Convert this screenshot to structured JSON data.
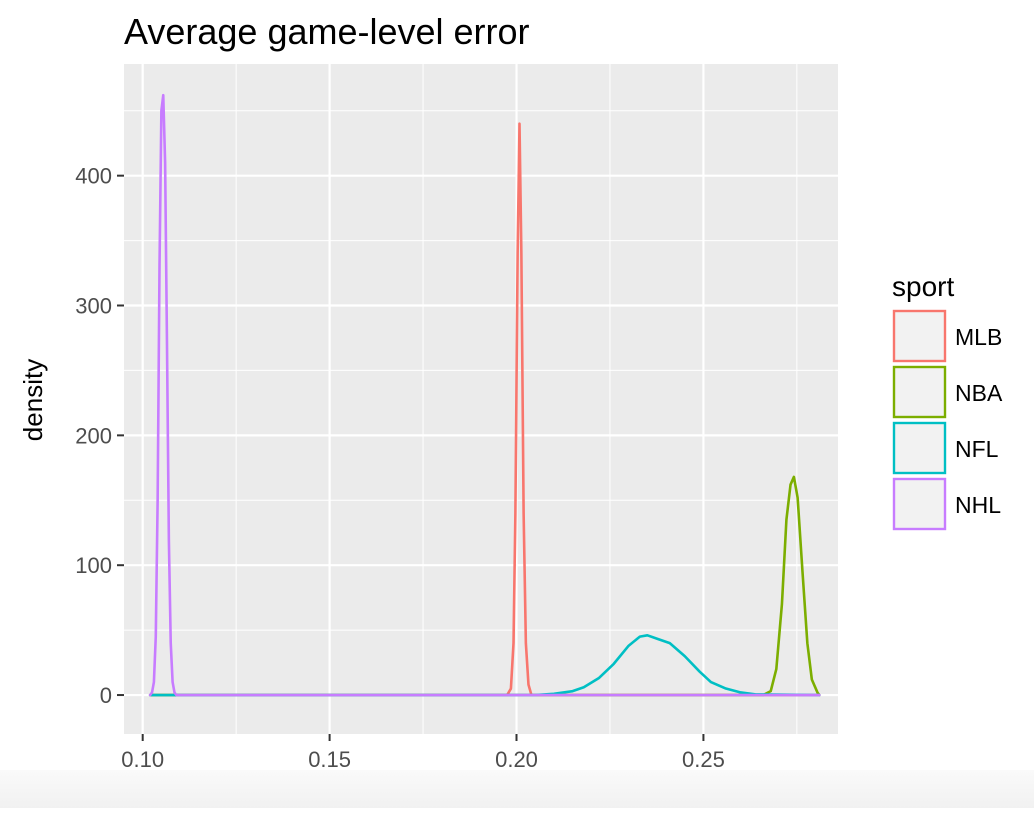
{
  "chart_data": {
    "type": "line",
    "title": "Average game-level error",
    "xlabel": "",
    "ylabel": "density",
    "xlim": [
      0.095,
      0.286
    ],
    "ylim": [
      -30,
      486
    ],
    "x_ticks": [
      0.1,
      0.15,
      0.2,
      0.25
    ],
    "x_tick_labels": [
      "0.10",
      "0.15",
      "0.20",
      "0.25"
    ],
    "y_ticks": [
      0,
      100,
      200,
      300,
      400
    ],
    "y_tick_labels": [
      "0",
      "100",
      "200",
      "300",
      "400"
    ],
    "grid": true,
    "legend": {
      "title": "sport",
      "placement": "right"
    },
    "series": [
      {
        "name": "MLB",
        "color": "#F8766D",
        "x": [
          0.102,
          0.1975,
          0.1985,
          0.1992,
          0.1997,
          0.2003,
          0.2008,
          0.2013,
          0.2019,
          0.2025,
          0.2032,
          0.204,
          0.281
        ],
        "y": [
          0,
          0,
          5,
          40,
          140,
          340,
          440,
          340,
          140,
          40,
          8,
          0,
          0
        ]
      },
      {
        "name": "NBA",
        "color": "#7CAE00",
        "x": [
          0.102,
          0.266,
          0.268,
          0.2695,
          0.271,
          0.2722,
          0.2733,
          0.2742,
          0.2752,
          0.2765,
          0.2778,
          0.279,
          0.2805,
          0.281
        ],
        "y": [
          0,
          0,
          3,
          20,
          70,
          135,
          162,
          168,
          152,
          95,
          40,
          12,
          2,
          0
        ]
      },
      {
        "name": "NFL",
        "color": "#00BFC4",
        "x": [
          0.102,
          0.205,
          0.21,
          0.215,
          0.218,
          0.222,
          0.226,
          0.23,
          0.233,
          0.235,
          0.238,
          0.241,
          0.245,
          0.249,
          0.252,
          0.256,
          0.26,
          0.264,
          0.281
        ],
        "y": [
          0,
          0,
          1,
          3,
          6,
          13,
          24,
          38,
          45,
          46,
          43,
          40,
          30,
          18,
          10,
          5,
          2,
          0.5,
          0
        ]
      },
      {
        "name": "NHL",
        "color": "#C77CFF",
        "x": [
          0.102,
          0.1025,
          0.103,
          0.1035,
          0.104,
          0.1045,
          0.105,
          0.1055,
          0.106,
          0.1065,
          0.107,
          0.1075,
          0.108,
          0.1085,
          0.109,
          0.281
        ],
        "y": [
          0,
          2,
          10,
          45,
          150,
          330,
          450,
          462,
          410,
          270,
          120,
          40,
          10,
          2,
          0,
          0
        ]
      }
    ]
  }
}
